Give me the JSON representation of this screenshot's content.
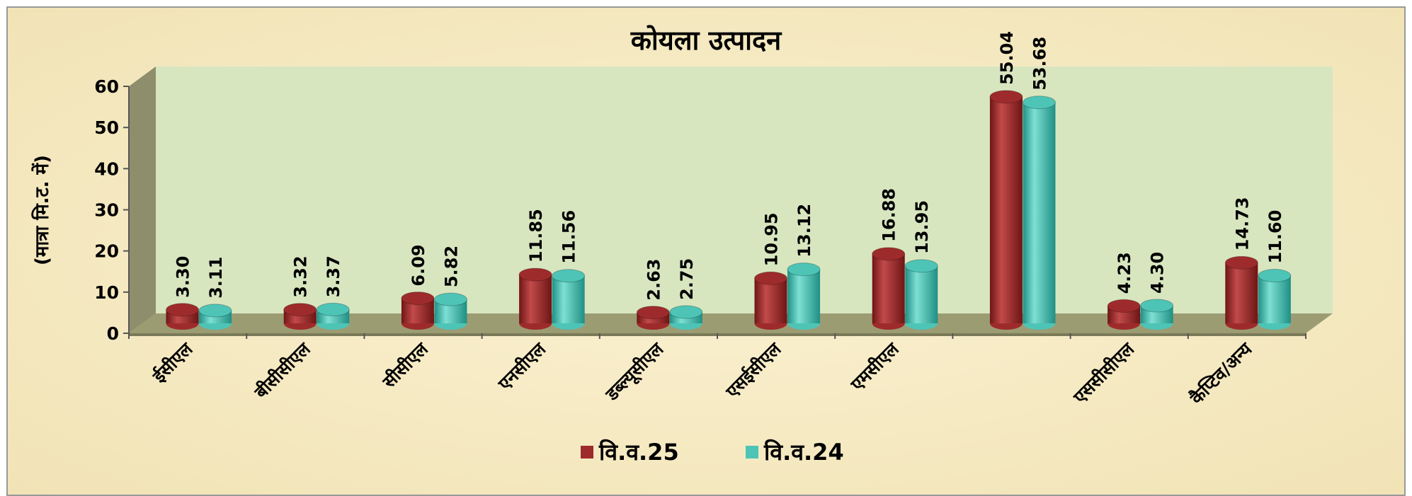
{
  "chart_data": {
    "type": "bar3d",
    "title": "कोयला उत्पादन",
    "ylabel": "(मात्रा मि.ट. में)",
    "categories": [
      "ईसीएल",
      "बीसीसीएल",
      "सीसीएल",
      "एनसीएल",
      "डब्ल्यूसीएल",
      "एसईसीएल",
      "एमसीएल",
      null,
      "एससीसीएल",
      "कैप्टिव/अन्य"
    ],
    "series": [
      {
        "name": "वि.व.25",
        "color": "#9e2b2b",
        "values": [
          3.3,
          3.32,
          6.09,
          11.85,
          2.63,
          10.95,
          16.88,
          55.04,
          4.23,
          14.73
        ],
        "value_labels": [
          "3.30",
          "3.32",
          "6.09",
          "11.85",
          "2.63",
          "10.95",
          "16.88",
          "55.04",
          "4.23",
          "14.73"
        ]
      },
      {
        "name": "वि.व.24",
        "color": "#4dc4b6",
        "values": [
          3.11,
          3.37,
          5.82,
          11.56,
          2.75,
          13.12,
          13.95,
          53.68,
          4.3,
          11.6
        ],
        "value_labels": [
          "3.11",
          "3.37",
          "5.82",
          "11.56",
          "2.75",
          "13.12",
          "13.95",
          "53.68",
          "4.30",
          "11.60"
        ]
      }
    ],
    "ylim": [
      0,
      60
    ],
    "yticks": [
      0,
      10,
      20,
      30,
      40,
      50,
      60
    ],
    "legend": "bottom"
  }
}
